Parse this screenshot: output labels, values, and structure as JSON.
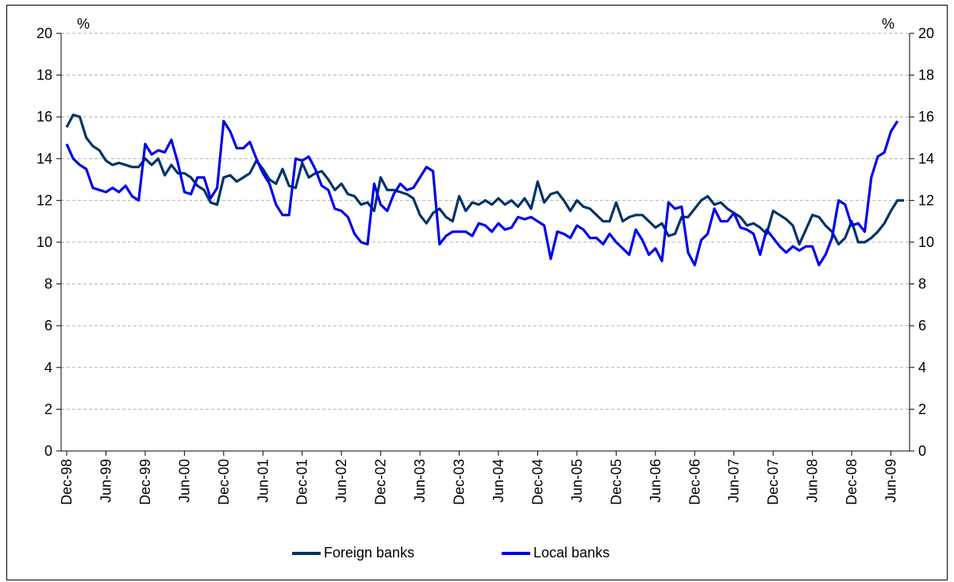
{
  "chart_data": {
    "type": "line",
    "title": "",
    "xlabel": "",
    "ylabel_left": "%",
    "ylabel_right": "%",
    "ylim": [
      0,
      20
    ],
    "yticks": [
      0,
      2,
      4,
      6,
      8,
      10,
      12,
      14,
      16,
      18,
      20
    ],
    "grid": true,
    "legend_position": "bottom",
    "x_tick_labels": [
      "Dec-98",
      "Jun-99",
      "Dec-99",
      "Jun-00",
      "Dec-00",
      "Jun-01",
      "Dec-01",
      "Jun-02",
      "Dec-02",
      "Jun-03",
      "Dec-03",
      "Jun-04",
      "Dec-04",
      "Jun-05",
      "Dec-05",
      "Jun-06",
      "Dec-06",
      "Jun-07",
      "Dec-07",
      "Jun-08",
      "Dec-08",
      "Jun-09"
    ],
    "x_start": "Dec-98",
    "series": [
      {
        "name": "Foreign banks",
        "color": "#003366",
        "values": [
          15.5,
          16.1,
          16.0,
          15.0,
          14.6,
          14.4,
          13.9,
          13.7,
          13.8,
          13.7,
          13.6,
          13.6,
          14.0,
          13.7,
          14.0,
          13.2,
          13.7,
          13.3,
          13.3,
          13.1,
          12.7,
          12.5,
          11.9,
          11.8,
          13.1,
          13.2,
          12.9,
          13.1,
          13.3,
          13.9,
          13.5,
          13.0,
          12.8,
          13.5,
          12.7,
          12.6,
          13.8,
          13.1,
          13.3,
          13.4,
          13.0,
          12.5,
          12.8,
          12.3,
          12.2,
          11.8,
          11.9,
          11.5,
          13.1,
          12.5,
          12.5,
          12.4,
          12.3,
          12.1,
          11.3,
          10.9,
          11.4,
          11.6,
          11.2,
          11.0,
          12.2,
          11.5,
          11.9,
          11.8,
          12.0,
          11.8,
          12.1,
          11.8,
          12.0,
          11.7,
          12.1,
          11.6,
          12.9,
          11.9,
          12.3,
          12.4,
          12.0,
          11.5,
          12.0,
          11.7,
          11.6,
          11.3,
          11.0,
          11.0,
          11.9,
          11.0,
          11.2,
          11.3,
          11.3,
          11.0,
          10.7,
          10.9,
          10.3,
          10.4,
          11.2,
          11.2,
          11.6,
          12.0,
          12.2,
          11.8,
          11.9,
          11.6,
          11.4,
          11.2,
          10.8,
          10.9,
          10.7,
          10.4,
          11.5,
          11.3,
          11.1,
          10.8,
          9.9,
          10.6,
          11.3,
          11.2,
          10.8,
          10.5,
          9.9,
          10.2,
          11.0,
          10.0,
          10.0,
          10.2,
          10.5,
          10.9,
          11.5,
          12.0,
          12.0
        ]
      },
      {
        "name": "Local banks",
        "color": "#0000ee",
        "values": [
          14.7,
          14.0,
          13.7,
          13.5,
          12.6,
          12.5,
          12.4,
          12.6,
          12.4,
          12.7,
          12.2,
          12.0,
          14.7,
          14.2,
          14.4,
          14.3,
          14.9,
          13.8,
          12.4,
          12.3,
          13.1,
          13.1,
          12.1,
          12.6,
          15.8,
          15.3,
          14.5,
          14.5,
          14.8,
          14.0,
          13.3,
          12.8,
          11.8,
          11.3,
          11.3,
          14.0,
          13.9,
          14.1,
          13.5,
          12.7,
          12.5,
          11.6,
          11.5,
          11.2,
          10.4,
          10.0,
          9.9,
          12.8,
          11.8,
          11.5,
          12.3,
          12.8,
          12.5,
          12.6,
          13.1,
          13.6,
          13.4,
          9.9,
          10.3,
          10.5,
          10.5,
          10.5,
          10.3,
          10.9,
          10.8,
          10.5,
          10.9,
          10.6,
          10.7,
          11.2,
          11.1,
          11.2,
          11.0,
          10.8,
          9.2,
          10.5,
          10.4,
          10.2,
          10.8,
          10.6,
          10.2,
          10.2,
          9.9,
          10.4,
          10.0,
          9.7,
          9.4,
          10.6,
          10.1,
          9.4,
          9.7,
          9.1,
          11.9,
          11.6,
          11.7,
          9.5,
          8.9,
          10.1,
          10.4,
          11.6,
          11.0,
          11.0,
          11.4,
          10.7,
          10.6,
          10.4,
          9.4,
          10.6,
          10.2,
          9.8,
          9.5,
          9.8,
          9.6,
          9.8,
          9.8,
          8.9,
          9.4,
          10.2,
          12.0,
          11.8,
          10.8,
          10.9,
          10.5,
          13.1,
          14.1,
          14.3,
          15.3,
          15.8
        ]
      }
    ]
  }
}
